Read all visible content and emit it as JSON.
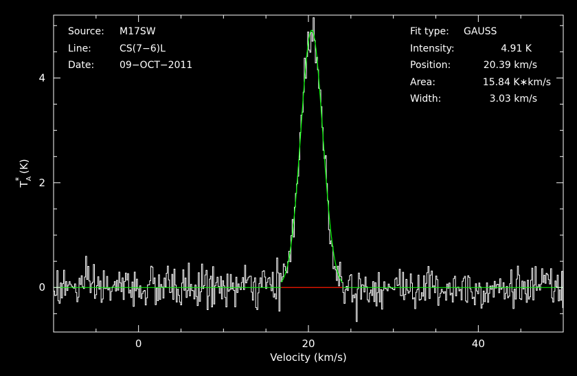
{
  "info_left": [
    {
      "key": "Source:",
      "value": "M17SW"
    },
    {
      "key": "Line:",
      "value": "CS(7−6)L"
    },
    {
      "key": "Date:",
      "value": "09−OCT−2011"
    }
  ],
  "info_right": [
    {
      "key": "Fit type:",
      "value": "GAUSS"
    },
    {
      "key": "Intensity:",
      "value": "4.91 K"
    },
    {
      "key": "Position:",
      "value": "20.39 km/s"
    },
    {
      "key": "Area:",
      "value": "15.84 K∗km/s"
    },
    {
      "key": "Width:",
      "value": "3.03 km/s"
    }
  ],
  "chart_data": {
    "type": "line",
    "xlabel": "Velocity (km/s)",
    "ylabel_main": "T",
    "ylabel_sup": "*",
    "ylabel_sub": "A",
    "ylabel_unit": " (K)",
    "xlim": [
      -10,
      50
    ],
    "ylim": [
      -0.85,
      5.2
    ],
    "x_ticks": [
      0,
      20,
      40
    ],
    "y_ticks": [
      0,
      2,
      4
    ],
    "x_tick_labels": [
      "0",
      "20",
      "40"
    ],
    "y_tick_labels": [
      "0",
      "2",
      "4"
    ],
    "noise_rms": 0.2,
    "channel_width": 0.13,
    "fit": {
      "type": "GAUSS",
      "amplitude": 4.91,
      "center": 20.39,
      "fwhm": 3.03,
      "area": 15.84,
      "window": [
        16.8,
        24.0
      ]
    },
    "colors": {
      "background": "#000000",
      "axes": "#ffffff",
      "spectrum": "#ffffff",
      "fit": "#00ff00",
      "baseline": "#ff0000"
    },
    "series": [
      {
        "name": "",
        "role": "spectrum"
      },
      {
        "name": "",
        "role": "gaussian-fit"
      },
      {
        "name": "",
        "role": "baseline-window"
      }
    ]
  }
}
